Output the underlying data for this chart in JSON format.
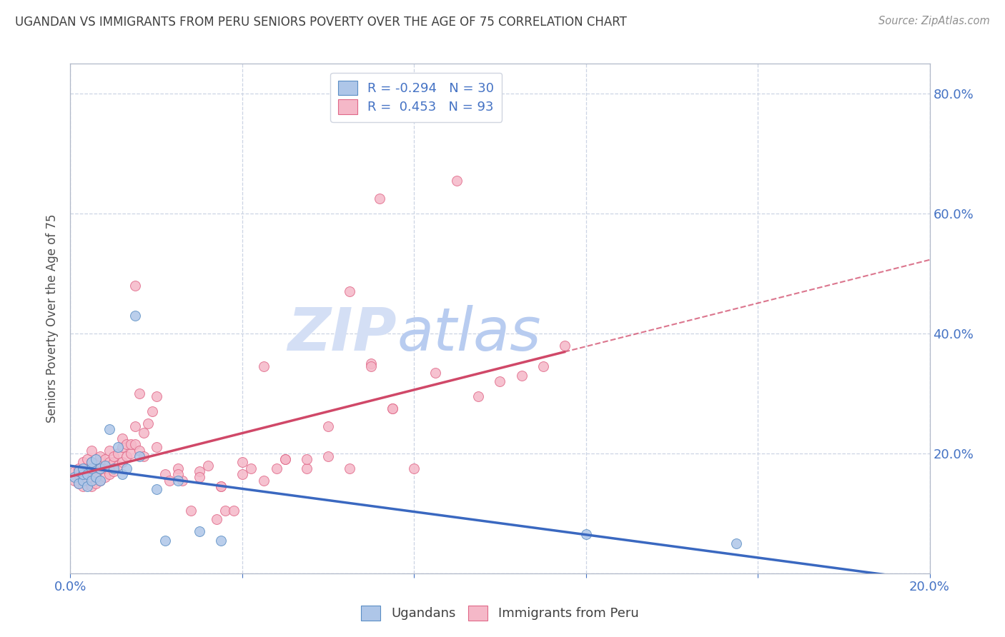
{
  "title": "UGANDAN VS IMMIGRANTS FROM PERU SENIORS POVERTY OVER THE AGE OF 75 CORRELATION CHART",
  "source": "Source: ZipAtlas.com",
  "ylabel": "Seniors Poverty Over the Age of 75",
  "xlim": [
    0.0,
    0.2
  ],
  "ylim": [
    0.0,
    0.85
  ],
  "xticks": [
    0.0,
    0.04,
    0.08,
    0.12,
    0.16,
    0.2
  ],
  "yticks": [
    0.0,
    0.2,
    0.4,
    0.6,
    0.8
  ],
  "blue_fill": "#aec6e8",
  "blue_edge": "#5b8ec4",
  "pink_fill": "#f5b8c8",
  "pink_edge": "#e06888",
  "blue_line": "#3a68c0",
  "pink_line": "#d04868",
  "watermark_color": "#c8d8f0",
  "axis_color": "#b0b8c8",
  "grid_color": "#ccd4e4",
  "title_color": "#404040",
  "source_color": "#909090",
  "tick_color": "#4472c4",
  "bg_color": "#ffffff",
  "blue_R": -0.294,
  "blue_N": 30,
  "pink_R": 0.453,
  "pink_N": 93,
  "blue_x": [
    0.001,
    0.002,
    0.002,
    0.003,
    0.003,
    0.003,
    0.004,
    0.004,
    0.005,
    0.005,
    0.005,
    0.006,
    0.006,
    0.007,
    0.007,
    0.008,
    0.009,
    0.01,
    0.011,
    0.012,
    0.013,
    0.015,
    0.016,
    0.02,
    0.022,
    0.025,
    0.03,
    0.035,
    0.12,
    0.155
  ],
  "blue_y": [
    0.16,
    0.15,
    0.17,
    0.155,
    0.165,
    0.175,
    0.145,
    0.165,
    0.155,
    0.175,
    0.185,
    0.16,
    0.19,
    0.155,
    0.175,
    0.18,
    0.24,
    0.175,
    0.21,
    0.165,
    0.175,
    0.43,
    0.195,
    0.14,
    0.055,
    0.155,
    0.07,
    0.055,
    0.065,
    0.05
  ],
  "pink_x": [
    0.001,
    0.001,
    0.002,
    0.002,
    0.002,
    0.003,
    0.003,
    0.003,
    0.003,
    0.004,
    0.004,
    0.004,
    0.005,
    0.005,
    0.005,
    0.005,
    0.006,
    0.006,
    0.006,
    0.007,
    0.007,
    0.007,
    0.007,
    0.008,
    0.008,
    0.008,
    0.009,
    0.009,
    0.009,
    0.01,
    0.01,
    0.01,
    0.011,
    0.011,
    0.012,
    0.012,
    0.012,
    0.013,
    0.013,
    0.014,
    0.014,
    0.015,
    0.015,
    0.016,
    0.016,
    0.017,
    0.017,
    0.018,
    0.019,
    0.02,
    0.022,
    0.023,
    0.025,
    0.026,
    0.028,
    0.03,
    0.032,
    0.034,
    0.035,
    0.036,
    0.038,
    0.04,
    0.042,
    0.045,
    0.048,
    0.05,
    0.055,
    0.06,
    0.065,
    0.07,
    0.075,
    0.015,
    0.02,
    0.025,
    0.03,
    0.035,
    0.04,
    0.045,
    0.05,
    0.055,
    0.06,
    0.065,
    0.07,
    0.072,
    0.075,
    0.08,
    0.085,
    0.09,
    0.095,
    0.1,
    0.105,
    0.11,
    0.115
  ],
  "pink_y": [
    0.155,
    0.17,
    0.15,
    0.165,
    0.175,
    0.145,
    0.16,
    0.175,
    0.185,
    0.155,
    0.165,
    0.19,
    0.145,
    0.17,
    0.185,
    0.205,
    0.15,
    0.165,
    0.175,
    0.155,
    0.175,
    0.185,
    0.195,
    0.16,
    0.175,
    0.19,
    0.165,
    0.185,
    0.205,
    0.17,
    0.185,
    0.195,
    0.18,
    0.2,
    0.185,
    0.21,
    0.225,
    0.195,
    0.215,
    0.2,
    0.215,
    0.215,
    0.245,
    0.205,
    0.3,
    0.195,
    0.235,
    0.25,
    0.27,
    0.295,
    0.165,
    0.155,
    0.175,
    0.155,
    0.105,
    0.17,
    0.18,
    0.09,
    0.145,
    0.105,
    0.105,
    0.165,
    0.175,
    0.345,
    0.175,
    0.19,
    0.175,
    0.195,
    0.47,
    0.35,
    0.275,
    0.48,
    0.21,
    0.165,
    0.16,
    0.145,
    0.185,
    0.155,
    0.19,
    0.19,
    0.245,
    0.175,
    0.345,
    0.625,
    0.275,
    0.175,
    0.335,
    0.655,
    0.295,
    0.32,
    0.33,
    0.345,
    0.38
  ]
}
